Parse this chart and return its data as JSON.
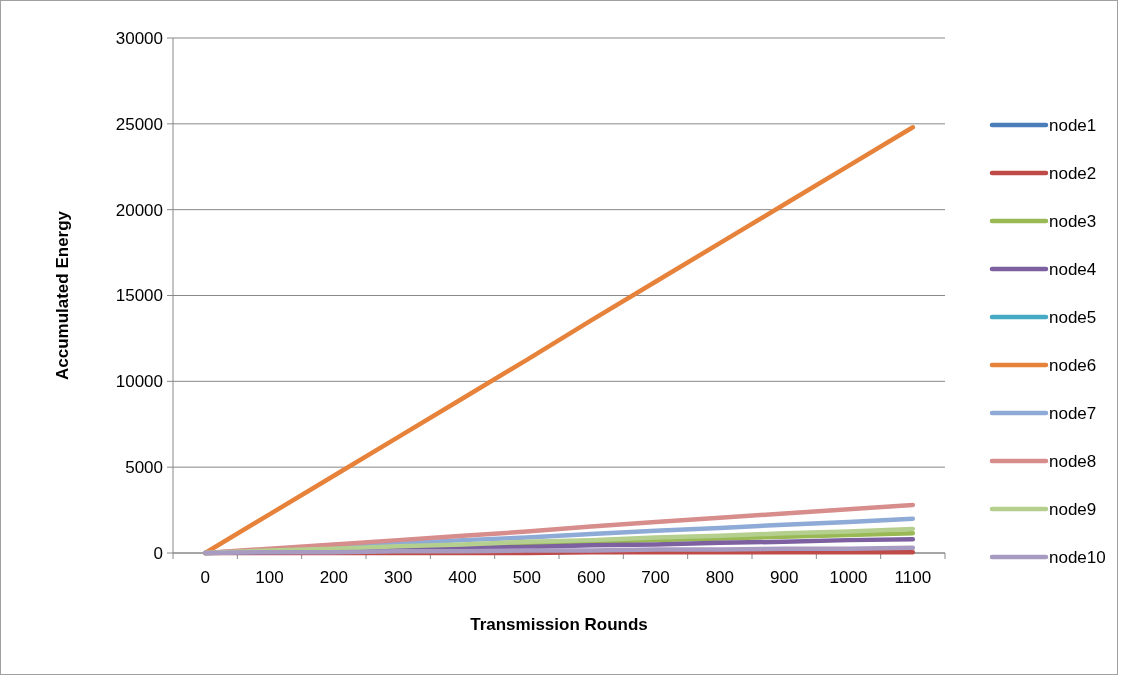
{
  "chart_data": {
    "type": "line",
    "xlabel": "Transmission Rounds",
    "ylabel": "Accumulated Energy",
    "categories": [
      "0",
      "100",
      "200",
      "300",
      "400",
      "500",
      "600",
      "700",
      "800",
      "900",
      "1000",
      "1100"
    ],
    "ylim": [
      0,
      30000
    ],
    "yticks": [
      0,
      5000,
      10000,
      15000,
      20000,
      25000,
      30000
    ],
    "grid": "y",
    "legend": "right",
    "marker": "none",
    "line_style": "solid",
    "series": [
      {
        "name": "node1",
        "color": "#4a7ebb",
        "values": [
          null,
          null,
          null,
          null,
          null,
          null,
          null,
          null,
          null,
          null,
          null,
          null
        ]
      },
      {
        "name": "node2",
        "color": "#be4b48",
        "values": [
          0,
          0,
          0,
          0,
          0,
          0,
          50,
          50,
          50,
          50,
          50,
          50
        ]
      },
      {
        "name": "node3",
        "color": "#98b954",
        "values": [
          0,
          100,
          200,
          300,
          400,
          500,
          650,
          750,
          850,
          950,
          1050,
          1150
        ]
      },
      {
        "name": "node4",
        "color": "#7d60a0",
        "values": [
          0,
          50,
          150,
          200,
          300,
          350,
          450,
          500,
          600,
          650,
          750,
          800
        ]
      },
      {
        "name": "node5",
        "color": "#46aac5",
        "values": [
          null,
          null,
          null,
          null,
          null,
          null,
          null,
          null,
          null,
          null,
          null,
          null
        ]
      },
      {
        "name": "node6",
        "color": "#e6823a",
        "values": [
          0,
          2250,
          4500,
          6750,
          9000,
          11250,
          13550,
          15800,
          18050,
          20300,
          22550,
          24800
        ]
      },
      {
        "name": "node7",
        "color": "#8eaad6",
        "values": [
          0,
          200,
          350,
          550,
          750,
          900,
          1100,
          1300,
          1450,
          1650,
          1800,
          2000
        ]
      },
      {
        "name": "node8",
        "color": "#d68d8b",
        "values": [
          0,
          250,
          500,
          750,
          1000,
          1250,
          1550,
          1800,
          2050,
          2300,
          2550,
          2800
        ]
      },
      {
        "name": "node9",
        "color": "#b5cf8e",
        "values": [
          0,
          150,
          250,
          400,
          500,
          650,
          750,
          900,
          1000,
          1150,
          1250,
          1400
        ]
      },
      {
        "name": "node10",
        "color": "#a89bc2",
        "values": [
          0,
          50,
          50,
          100,
          100,
          150,
          150,
          200,
          200,
          250,
          250,
          300
        ]
      }
    ]
  }
}
